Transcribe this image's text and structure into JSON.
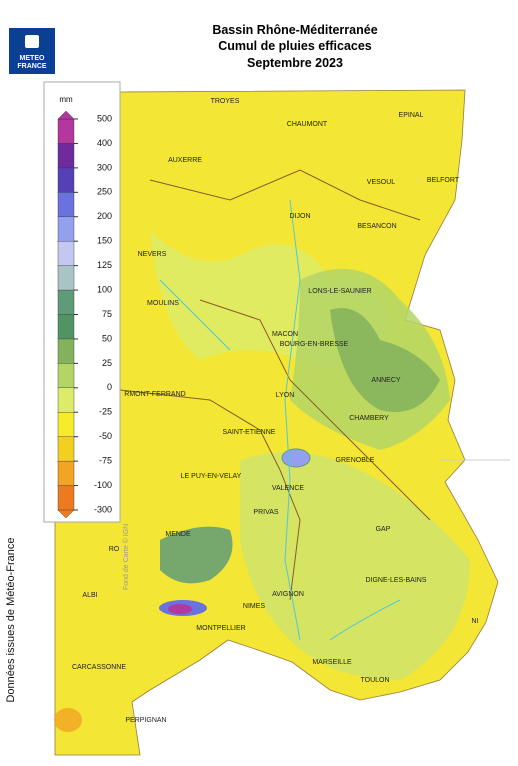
{
  "header": {
    "logo": [
      "METEO",
      "FRANCE"
    ],
    "title": [
      "Bassin Rhône-Méditerranée",
      "Cumul de pluies efficaces",
      "Septembre 2023"
    ]
  },
  "legend": {
    "unit": "mm",
    "levels": [
      500,
      400,
      300,
      250,
      200,
      150,
      125,
      100,
      75,
      50,
      25,
      0,
      -25,
      -50,
      -75,
      -100,
      -300
    ],
    "colors": [
      "#b4379f",
      "#6f2a9e",
      "#5540b8",
      "#6a72de",
      "#93a0ee",
      "#c3c8f2",
      "#a9c4c6",
      "#5f9b78",
      "#4f9462",
      "#82b35c",
      "#b3d566",
      "#dcec6a",
      "#f6ec2c",
      "#f2cf20",
      "#f2a424",
      "#ec7a1e"
    ]
  },
  "map": {
    "places": [
      "TROYES",
      "CHAUMONT",
      "EPINAL",
      "AUXERRE",
      "VESOUL",
      "BELFORT",
      "DIJON",
      "BESANCON",
      "NEVERS",
      "LONS-LE-SAUNIER",
      "MOULINS",
      "MACON",
      "BOURG-EN-BRESSE",
      "ANNECY",
      "LYON",
      "RMONT-FERRAND",
      "CHAMBERY",
      "SAINT-ETIENNE",
      "GRENOBLE",
      "LE PUY-EN-VELAY",
      "VALENCE",
      "PRIVAS",
      "GAP",
      "MENDE",
      "RO",
      "DIGNE-LES-BAINS",
      "AVIGNON",
      "ALBI",
      "NIMES",
      "MONTPELLIER",
      "NI",
      "CARCASSONNE",
      "MARSEILLE",
      "TOULON",
      "PERPIGNAN"
    ],
    "credit": "Fond de Carte © IGN"
  },
  "source": "Données issues de Météo-France"
}
